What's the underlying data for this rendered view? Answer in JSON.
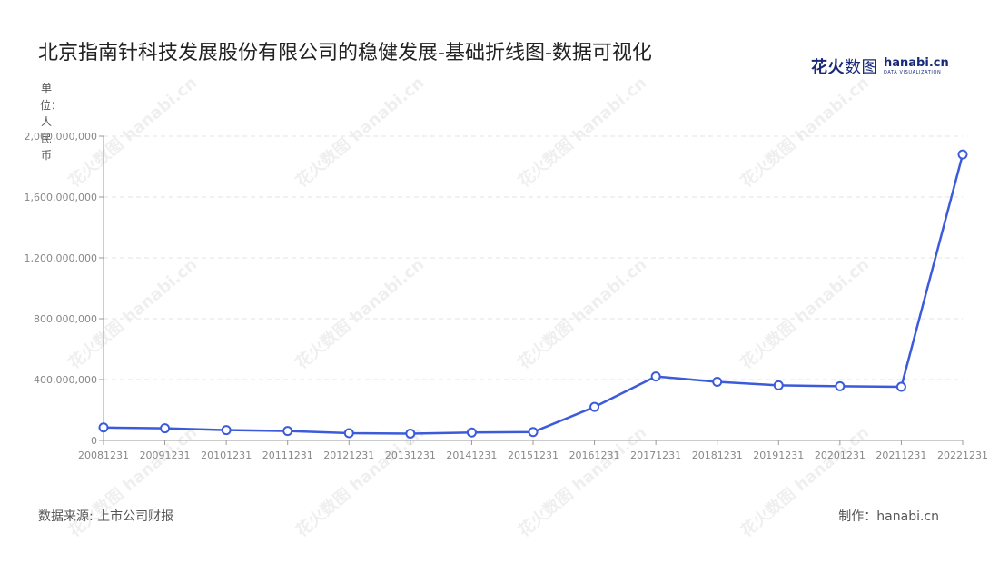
{
  "title": "北京指南针科技发展股份有限公司的稳健发展-基础折线图-数据可视化",
  "brand": {
    "cn_bold": "花火",
    "cn_light": "数图",
    "en": "hanabi.cn",
    "en_sub": "DATA VISUALIZATION"
  },
  "unit_label": "单位：人民币",
  "footer": {
    "source": "数据来源: 上市公司财报",
    "maker": "制作：hanabi.cn"
  },
  "watermark": "花火数图 hanabi.cn",
  "colors": {
    "line": "#3b5bdb",
    "grid": "#e3e3e3",
    "axis": "#999999",
    "tick": "#888888"
  },
  "chart_data": {
    "type": "line",
    "categories": [
      "20081231",
      "20091231",
      "20101231",
      "20111231",
      "20121231",
      "20131231",
      "20141231",
      "20151231",
      "20161231",
      "20171231",
      "20181231",
      "20191231",
      "20201231",
      "20211231",
      "20221231"
    ],
    "values": [
      85000000,
      80000000,
      68000000,
      62000000,
      48000000,
      45000000,
      52000000,
      55000000,
      220000000,
      420000000,
      385000000,
      362000000,
      356000000,
      352000000,
      1880000000
    ],
    "ylim": [
      0,
      2000000000
    ],
    "yticks": [
      0,
      400000000,
      800000000,
      1200000000,
      1600000000,
      2000000000
    ],
    "ytick_labels": [
      "0",
      "400,000,000",
      "800,000,000",
      "1,200,000,000",
      "1,600,000,000",
      "2,000,000,000"
    ],
    "grid": true,
    "legend": "none"
  }
}
